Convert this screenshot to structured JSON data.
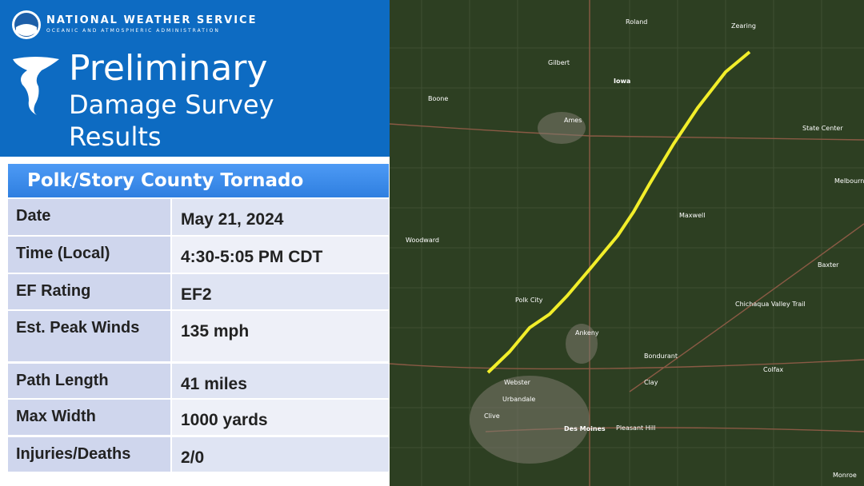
{
  "header": {
    "agency": "NATIONAL WEATHER SERVICE",
    "agency_sub": "OCEANIC AND ATMOSPHERIC ADMINISTRATION",
    "title_lines": [
      "Preliminary",
      "Damage Survey",
      "Results"
    ]
  },
  "table": {
    "title": "Polk/Story County Tornado",
    "rows": [
      [
        "Date",
        "May 21, 2024"
      ],
      [
        "Time (Local)",
        "4:30-5:05 PM CDT"
      ],
      [
        "EF Rating",
        "EF2"
      ],
      [
        "Est. Peak Winds",
        "135 mph"
      ],
      [
        "Path Length",
        "41 miles"
      ],
      [
        "Max Width",
        "1000 yards"
      ],
      [
        "Injuries/Deaths",
        "2/0"
      ]
    ]
  },
  "map": {
    "places": [
      "Roland",
      "Zearing",
      "Gilbert",
      "Iowa",
      "Boone",
      "Ames",
      "State Center",
      "Melbourne",
      "Maxwell",
      "Woodward",
      "Baxter",
      "Polk City",
      "Chichaqua Valley Trail",
      "Ankeny",
      "Bondurant",
      "Colfax",
      "Webster",
      "Clay",
      "Urbandale",
      "Clive",
      "Des Moines",
      "Pleasant Hill",
      "Monroe"
    ]
  }
}
